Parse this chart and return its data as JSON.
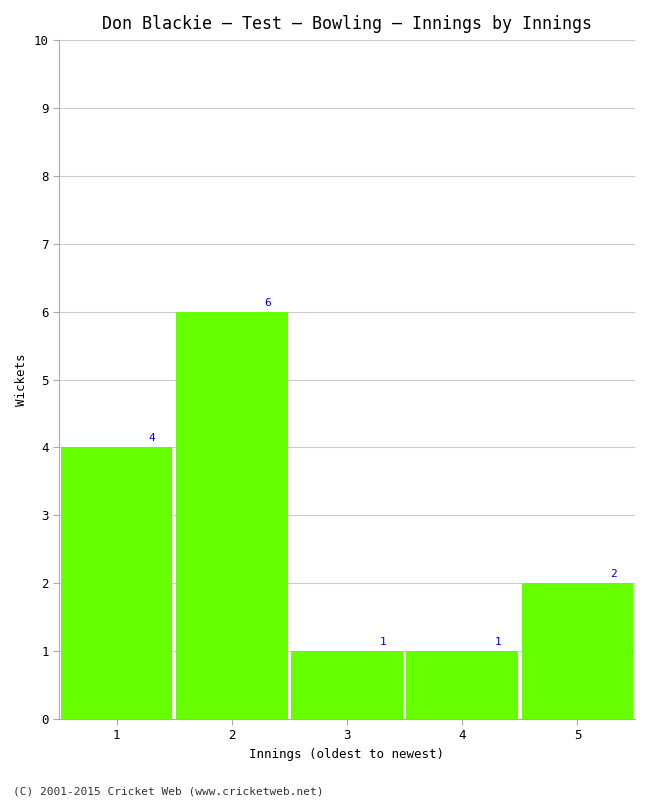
{
  "title": "Don Blackie – Test – Bowling – Innings by Innings",
  "xlabel": "Innings (oldest to newest)",
  "ylabel": "Wickets",
  "categories": [
    1,
    2,
    3,
    4,
    5
  ],
  "values": [
    4,
    6,
    1,
    1,
    2
  ],
  "bar_color": "#66ff00",
  "annotation_color": "#0000cc",
  "ylim": [
    0,
    10
  ],
  "yticks": [
    0,
    1,
    2,
    3,
    4,
    5,
    6,
    7,
    8,
    9,
    10
  ],
  "xticks": [
    1,
    2,
    3,
    4,
    5
  ],
  "background_color": "#ffffff",
  "grid_color": "#cccccc",
  "footer": "(C) 2001-2015 Cricket Web (www.cricketweb.net)",
  "title_fontsize": 12,
  "axis_label_fontsize": 9,
  "tick_fontsize": 9,
  "annotation_fontsize": 8,
  "footer_fontsize": 8,
  "bar_width": 0.97
}
